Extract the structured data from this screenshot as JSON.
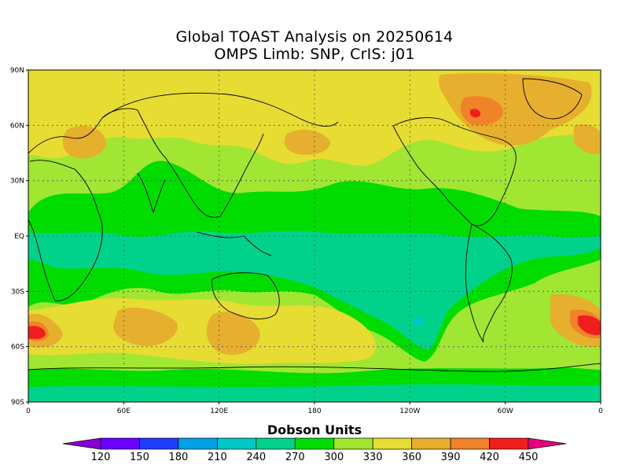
{
  "title_line1": "Global TOAST Analysis on 20250614",
  "title_line2": "OMPS Limb: SNP,  CrIS: j01",
  "lat_labels": [
    "90N",
    "60N",
    "30N",
    "EQ",
    "30S",
    "60S",
    "90S"
  ],
  "lon_labels": [
    "0",
    "60E",
    "120E",
    "180",
    "120W",
    "60W",
    "0"
  ],
  "colorbar": {
    "title": "Dobson Units",
    "levels": [
      "120",
      "150",
      "180",
      "210",
      "240",
      "270",
      "300",
      "330",
      "360",
      "390",
      "420",
      "450"
    ],
    "colors": [
      "#8a00d4",
      "#6a00ff",
      "#1e3cff",
      "#00a0e6",
      "#00c8c8",
      "#00d28c",
      "#00dc00",
      "#a0e632",
      "#e6dc32",
      "#e6af2d",
      "#f08228",
      "#f01e1e",
      "#e6007e"
    ]
  },
  "map_colors": {
    "c270": "#00d28c",
    "c300": "#00dc00",
    "c330": "#a0e632",
    "c360": "#e6dc32",
    "c390": "#e6af2d",
    "c420": "#f08228",
    "c450": "#f01e1e",
    "c480": "#e6007e",
    "c240": "#00c8c8"
  }
}
